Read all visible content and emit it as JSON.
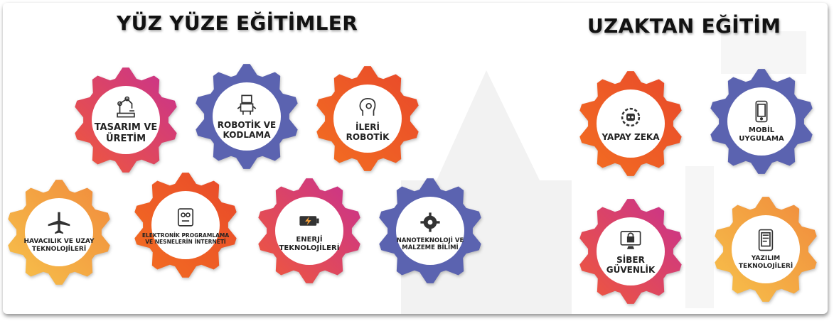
{
  "headings": {
    "face_to_face": "YÜZ YÜZE EĞİTİMLER",
    "remote": "UZAKTAN EĞİTİM"
  },
  "colors": {
    "pink_gradient": [
      "#f0593a",
      "#c8318f"
    ],
    "blue": "#5b63b0",
    "orange_gradient": [
      "#f36f21",
      "#e8482b"
    ],
    "yellow_gradient": [
      "#f7c24b",
      "#f08a3c"
    ],
    "heading_text": "#121212",
    "label_text": "#222222"
  },
  "face_to_face": [
    {
      "label": "TASARIM VE\nÜRETİM",
      "icon": "robot-arm-icon"
    },
    {
      "label": "ROBOTİK VE\nKODLAMA",
      "icon": "robot-icon"
    },
    {
      "label": "İLERİ\nROBOTİK",
      "icon": "robot-head-icon"
    },
    {
      "label": "HAVACILIK VE UZAY\nTEKNOLOJİLERİ",
      "icon": "airplane-icon"
    },
    {
      "label": "ELEKTRONİK PROGRAMLAMA\nVE NESNELERİN İNTERNETİ",
      "icon": "circuit-device-icon"
    },
    {
      "label": "ENERJİ\nTEKNOLOJİLERİ",
      "icon": "battery-icon"
    },
    {
      "label": "NANOTEKNOLOJİ VE\nMALZEME BİLİMİ",
      "icon": "gear-molecule-icon"
    }
  ],
  "remote": [
    {
      "label": "YAPAY ZEKA",
      "icon": "ai-chip-gear-icon"
    },
    {
      "label": "MOBİL\nUYGULAMA",
      "icon": "mobile-phone-icon"
    },
    {
      "label": "SİBER\nGÜVENLİK",
      "icon": "lock-monitor-icon"
    },
    {
      "label": "YAZILIM\nTEKNOLOJİLERİ",
      "icon": "tablet-app-icon"
    }
  ]
}
